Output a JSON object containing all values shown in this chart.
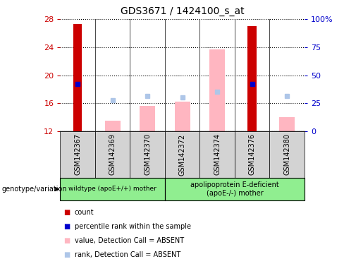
{
  "title": "GDS3671 / 1424100_s_at",
  "samples": [
    "GSM142367",
    "GSM142369",
    "GSM142370",
    "GSM142372",
    "GSM142374",
    "GSM142376",
    "GSM142380"
  ],
  "ylim": [
    12,
    28
  ],
  "yticks": [
    12,
    16,
    20,
    24,
    28
  ],
  "y2lim": [
    0,
    100
  ],
  "y2ticks": [
    0,
    25,
    50,
    75,
    100
  ],
  "red_bars": {
    "GSM142367": 27.3,
    "GSM142376": 27.0
  },
  "blue_squares": {
    "GSM142367": 18.8,
    "GSM142376": 18.8
  },
  "pink_bars": {
    "GSM142369": 13.5,
    "GSM142370": 15.6,
    "GSM142372": 16.2,
    "GSM142374": 23.7,
    "GSM142380": 14.0
  },
  "light_blue_squares": {
    "GSM142369": 16.4,
    "GSM142370": 17.0,
    "GSM142372": 16.8,
    "GSM142374": 17.6,
    "GSM142380": 17.0
  },
  "group1_samples": [
    "GSM142367",
    "GSM142369",
    "GSM142370"
  ],
  "group1_label": "wildtype (apoE+/+) mother",
  "group2_samples": [
    "GSM142372",
    "GSM142374",
    "GSM142376",
    "GSM142380"
  ],
  "group2_label": "apolipoprotein E-deficient\n(apoE-/-) mother",
  "group_color": "#90ee90",
  "group_label_text": "genotype/variation",
  "red_color": "#cc0000",
  "pink_color": "#ffb6c1",
  "blue_color": "#0000cc",
  "light_blue_color": "#aec6e8",
  "yaxis_color": "#cc0000",
  "y2axis_color": "#0000cc",
  "label_bg": "#d3d3d3",
  "legend": [
    {
      "color": "#cc0000",
      "label": "count"
    },
    {
      "color": "#0000cc",
      "label": "percentile rank within the sample"
    },
    {
      "color": "#ffb6c1",
      "label": "value, Detection Call = ABSENT"
    },
    {
      "color": "#aec6e8",
      "label": "rank, Detection Call = ABSENT"
    }
  ]
}
